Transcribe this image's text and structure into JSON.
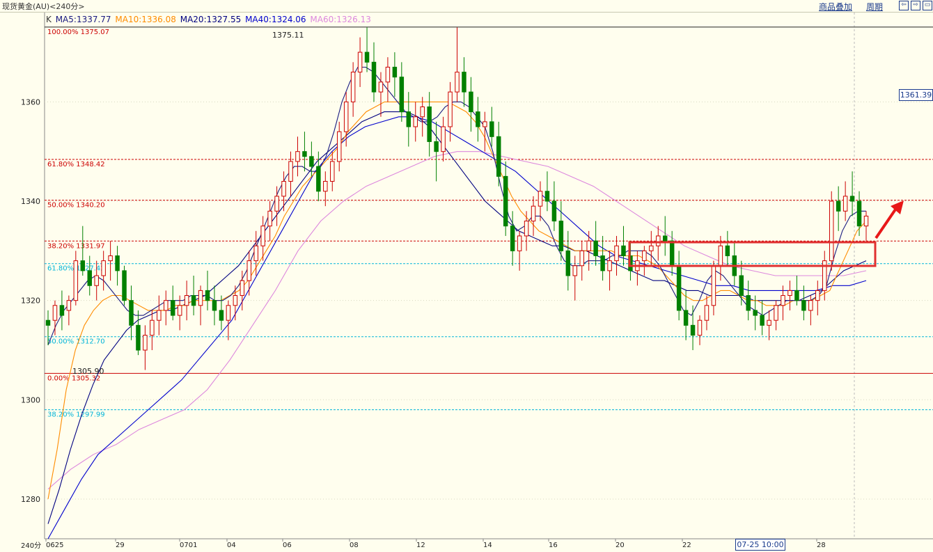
{
  "header": {
    "title": "现货黄金(AU)<240分>",
    "overlay_label": "商品叠加",
    "period_label": "周期"
  },
  "legend": {
    "k": "K",
    "ma5": "MA5:1337.77",
    "ma10": "MA10:1336.08",
    "ma20": "MA20:1327.55",
    "ma40": "MA40:1324.06",
    "ma60": "MA60:1326.13"
  },
  "colors": {
    "up": "#cc0000",
    "down": "#008000",
    "ma5": "#1a1a80",
    "ma10": "#ff8c00",
    "ma20": "#000080",
    "ma40": "#0000cc",
    "ma60": "#dd88dd",
    "fib_red": "#cc0000",
    "fib_cyan": "#00b4d8"
  },
  "price_tag": "1361.39",
  "cursor_tag": "07-25 10:00",
  "period": "240分",
  "high_label": "1375.11",
  "low_label": "1305.90",
  "chart_data": {
    "type": "candlestick",
    "ylim": [
      1272,
      1378
    ],
    "yticks": [
      1280,
      1300,
      1320,
      1340,
      1360
    ],
    "xticks": [
      "0625",
      "29",
      "0701",
      "04",
      "06",
      "08",
      "12",
      "14",
      "16",
      "20",
      "22",
      "07-25 10:00",
      "28"
    ],
    "fib_levels": [
      {
        "label": "100.00% 1375.07",
        "value": 1375.07,
        "color": "red",
        "style": "solid"
      },
      {
        "label": "61.80% 1348.42",
        "value": 1348.42,
        "color": "red",
        "style": "dashed"
      },
      {
        "label": "50.00% 1340.20",
        "value": 1340.2,
        "color": "red",
        "style": "dashed"
      },
      {
        "label": "38.20% 1331.97",
        "value": 1331.97,
        "color": "red",
        "style": "dashed"
      },
      {
        "label": "61.80% 1327.42",
        "value": 1327.42,
        "color": "cyan",
        "style": "dashed"
      },
      {
        "label": "50.00% 1312.70",
        "value": 1312.7,
        "color": "cyan",
        "style": "dashed"
      },
      {
        "label": "0.00% 1305.32",
        "value": 1305.32,
        "color": "red",
        "style": "solid"
      },
      {
        "label": "38.20% 1297.99",
        "value": 1297.99,
        "color": "cyan",
        "style": "dashed"
      }
    ],
    "candles": [
      [
        1316,
        1318,
        1311,
        1315
      ],
      [
        1316,
        1320,
        1313,
        1319
      ],
      [
        1319,
        1322,
        1314,
        1317
      ],
      [
        1318,
        1321,
        1315,
        1320
      ],
      [
        1320,
        1330,
        1319,
        1328
      ],
      [
        1328,
        1335,
        1325,
        1326
      ],
      [
        1326,
        1329,
        1321,
        1323
      ],
      [
        1323,
        1328,
        1320,
        1325
      ],
      [
        1325,
        1330,
        1322,
        1328
      ],
      [
        1328,
        1332,
        1324,
        1329
      ],
      [
        1329,
        1331,
        1323,
        1326
      ],
      [
        1326,
        1327,
        1319,
        1320
      ],
      [
        1320,
        1323,
        1312,
        1315
      ],
      [
        1315,
        1318,
        1309,
        1310
      ],
      [
        1310,
        1315,
        1306,
        1313
      ],
      [
        1313,
        1318,
        1310,
        1316
      ],
      [
        1316,
        1321,
        1313,
        1318
      ],
      [
        1318,
        1322,
        1315,
        1320
      ],
      [
        1320,
        1323,
        1316,
        1317
      ],
      [
        1317,
        1321,
        1314,
        1319
      ],
      [
        1319,
        1324,
        1316,
        1321
      ],
      [
        1321,
        1325,
        1317,
        1319
      ],
      [
        1319,
        1323,
        1315,
        1322
      ],
      [
        1322,
        1326,
        1318,
        1320
      ],
      [
        1320,
        1323,
        1315,
        1318
      ],
      [
        1318,
        1321,
        1314,
        1316
      ],
      [
        1316,
        1320,
        1312,
        1319
      ],
      [
        1319,
        1323,
        1316,
        1321
      ],
      [
        1321,
        1326,
        1318,
        1324
      ],
      [
        1324,
        1330,
        1321,
        1328
      ],
      [
        1328,
        1334,
        1325,
        1331
      ],
      [
        1331,
        1337,
        1328,
        1335
      ],
      [
        1335,
        1340,
        1332,
        1338
      ],
      [
        1338,
        1343,
        1335,
        1341
      ],
      [
        1341,
        1346,
        1338,
        1344
      ],
      [
        1344,
        1350,
        1341,
        1348
      ],
      [
        1348,
        1353,
        1345,
        1350
      ],
      [
        1350,
        1354,
        1346,
        1349
      ],
      [
        1349,
        1352,
        1345,
        1347
      ],
      [
        1347,
        1350,
        1340,
        1342
      ],
      [
        1342,
        1346,
        1339,
        1344
      ],
      [
        1344,
        1350,
        1342,
        1348
      ],
      [
        1348,
        1356,
        1346,
        1354
      ],
      [
        1354,
        1362,
        1351,
        1360
      ],
      [
        1360,
        1368,
        1357,
        1366
      ],
      [
        1366,
        1373,
        1363,
        1370
      ],
      [
        1370,
        1375,
        1366,
        1368
      ],
      [
        1368,
        1372,
        1360,
        1362
      ],
      [
        1362,
        1366,
        1357,
        1364
      ],
      [
        1364,
        1369,
        1360,
        1367
      ],
      [
        1367,
        1370,
        1361,
        1365
      ],
      [
        1365,
        1368,
        1356,
        1358
      ],
      [
        1358,
        1362,
        1351,
        1355
      ],
      [
        1355,
        1360,
        1352,
        1357
      ],
      [
        1357,
        1361,
        1353,
        1359
      ],
      [
        1359,
        1362,
        1349,
        1352
      ],
      [
        1352,
        1356,
        1344,
        1350
      ],
      [
        1350,
        1357,
        1348,
        1355
      ],
      [
        1355,
        1364,
        1352,
        1362
      ],
      [
        1362,
        1375,
        1360,
        1366
      ],
      [
        1366,
        1369,
        1359,
        1362
      ],
      [
        1362,
        1365,
        1354,
        1358
      ],
      [
        1358,
        1361,
        1352,
        1355
      ],
      [
        1355,
        1358,
        1350,
        1356
      ],
      [
        1356,
        1359,
        1351,
        1353
      ],
      [
        1353,
        1356,
        1343,
        1345
      ],
      [
        1345,
        1348,
        1333,
        1335
      ],
      [
        1335,
        1338,
        1327,
        1330
      ],
      [
        1330,
        1334,
        1326,
        1333
      ],
      [
        1333,
        1338,
        1330,
        1336
      ],
      [
        1336,
        1341,
        1333,
        1339
      ],
      [
        1339,
        1344,
        1336,
        1342
      ],
      [
        1342,
        1346,
        1338,
        1340
      ],
      [
        1340,
        1344,
        1334,
        1336
      ],
      [
        1336,
        1340,
        1328,
        1330
      ],
      [
        1330,
        1334,
        1322,
        1325
      ],
      [
        1325,
        1329,
        1320,
        1327
      ],
      [
        1327,
        1332,
        1324,
        1330
      ],
      [
        1330,
        1334,
        1326,
        1332
      ],
      [
        1332,
        1336,
        1327,
        1329
      ],
      [
        1329,
        1333,
        1324,
        1326
      ],
      [
        1326,
        1330,
        1322,
        1328
      ],
      [
        1328,
        1333,
        1325,
        1331
      ],
      [
        1331,
        1335,
        1327,
        1329
      ],
      [
        1329,
        1332,
        1324,
        1326
      ],
      [
        1326,
        1330,
        1323,
        1328
      ],
      [
        1328,
        1331,
        1325,
        1330
      ],
      [
        1330,
        1334,
        1327,
        1331
      ],
      [
        1331,
        1335,
        1328,
        1333
      ],
      [
        1333,
        1337,
        1329,
        1332
      ],
      [
        1332,
        1334,
        1325,
        1327
      ],
      [
        1327,
        1330,
        1316,
        1318
      ],
      [
        1318,
        1322,
        1312,
        1315
      ],
      [
        1315,
        1319,
        1310,
        1313
      ],
      [
        1313,
        1317,
        1311,
        1316
      ],
      [
        1316,
        1321,
        1314,
        1319
      ],
      [
        1319,
        1328,
        1317,
        1327
      ],
      [
        1327,
        1333,
        1324,
        1331
      ],
      [
        1331,
        1334,
        1327,
        1329
      ],
      [
        1329,
        1332,
        1323,
        1325
      ],
      [
        1325,
        1328,
        1319,
        1321
      ],
      [
        1321,
        1324,
        1316,
        1318
      ],
      [
        1318,
        1321,
        1314,
        1317
      ],
      [
        1317,
        1320,
        1313,
        1315
      ],
      [
        1315,
        1318,
        1312,
        1316
      ],
      [
        1316,
        1320,
        1314,
        1319
      ],
      [
        1319,
        1323,
        1316,
        1321
      ],
      [
        1321,
        1324,
        1318,
        1322
      ],
      [
        1322,
        1325,
        1319,
        1320
      ],
      [
        1320,
        1323,
        1316,
        1318
      ],
      [
        1318,
        1321,
        1315,
        1320
      ],
      [
        1320,
        1324,
        1317,
        1322
      ],
      [
        1322,
        1330,
        1320,
        1328
      ],
      [
        1328,
        1342,
        1326,
        1340
      ],
      [
        1340,
        1343,
        1334,
        1338
      ],
      [
        1338,
        1344,
        1336,
        1341
      ],
      [
        1341,
        1346,
        1337,
        1340
      ],
      [
        1340,
        1342,
        1333,
        1335
      ],
      [
        1335,
        1338,
        1332,
        1337
      ]
    ],
    "ma5": [
      1311,
      1315,
      1318,
      1320,
      1322,
      1324,
      1325,
      1324,
      1322,
      1320,
      1318,
      1317,
      1317,
      1318,
      1319,
      1320,
      1320,
      1320,
      1321,
      1321,
      1321,
      1320,
      1320,
      1321,
      1323,
      1326,
      1330,
      1334,
      1338,
      1342,
      1345,
      1347,
      1347,
      1346,
      1346,
      1349,
      1354,
      1360,
      1364,
      1367,
      1367,
      1366,
      1364,
      1362,
      1360,
      1358,
      1357,
      1356,
      1356,
      1357,
      1359,
      1360,
      1360,
      1359,
      1357,
      1355,
      1350,
      1343,
      1337,
      1334,
      1335,
      1337,
      1337,
      1335,
      1331,
      1328,
      1327,
      1327,
      1328,
      1328,
      1328,
      1329,
      1329,
      1330,
      1330,
      1330,
      1329,
      1327,
      1324,
      1321,
      1318,
      1317,
      1320,
      1324,
      1326,
      1325,
      1323,
      1321,
      1319,
      1318,
      1317,
      1318,
      1319,
      1320,
      1320,
      1320,
      1320,
      1321,
      1323,
      1329,
      1334,
      1337,
      1338,
      1338
    ],
    "ma10": [
      1280,
      1290,
      1302,
      1310,
      1315,
      1318,
      1320,
      1321,
      1321,
      1320,
      1319,
      1318,
      1318,
      1318,
      1319,
      1319,
      1320,
      1320,
      1320,
      1320,
      1321,
      1322,
      1324,
      1327,
      1330,
      1333,
      1337,
      1340,
      1343,
      1345,
      1347,
      1349,
      1351,
      1354,
      1356,
      1358,
      1359,
      1360,
      1360,
      1360,
      1360,
      1360,
      1360,
      1360,
      1360,
      1359,
      1358,
      1356,
      1353,
      1349,
      1345,
      1341,
      1338,
      1336,
      1334,
      1333,
      1332,
      1331,
      1330,
      1330,
      1330,
      1330,
      1330,
      1329,
      1329,
      1329,
      1328,
      1327,
      1325,
      1323,
      1321,
      1320,
      1320,
      1321,
      1322,
      1322,
      1321,
      1320,
      1320,
      1319,
      1319,
      1319,
      1320,
      1320,
      1320,
      1321,
      1322,
      1326,
      1330,
      1334,
      1336
    ],
    "ma20": [
      1275,
      1282,
      1290,
      1297,
      1303,
      1308,
      1311,
      1314,
      1316,
      1317,
      1318,
      1318,
      1319,
      1320,
      1321,
      1323,
      1325,
      1327,
      1330,
      1333,
      1336,
      1339,
      1342,
      1345,
      1348,
      1350,
      1352,
      1354,
      1356,
      1357,
      1358,
      1358,
      1358,
      1357,
      1355,
      1352,
      1349,
      1346,
      1343,
      1340,
      1338,
      1336,
      1334,
      1333,
      1332,
      1331,
      1331,
      1330,
      1330,
      1329,
      1328,
      1327,
      1326,
      1325,
      1324,
      1324,
      1323,
      1322,
      1322,
      1321,
      1321,
      1321,
      1321,
      1320,
      1320,
      1320,
      1320,
      1320,
      1321,
      1322,
      1324,
      1326,
      1327,
      1328
    ],
    "ma40": [
      1272,
      1278,
      1284,
      1289,
      1292,
      1295,
      1298,
      1301,
      1304,
      1308,
      1312,
      1316,
      1322,
      1328,
      1334,
      1340,
      1346,
      1350,
      1353,
      1355,
      1356,
      1357,
      1357,
      1356,
      1354,
      1352,
      1350,
      1348,
      1346,
      1343,
      1340,
      1337,
      1334,
      1331,
      1329,
      1328,
      1327,
      1326,
      1325,
      1324,
      1323,
      1323,
      1322,
      1322,
      1322,
      1322,
      1322,
      1323,
      1323,
      1324
    ],
    "ma60": [
      1282,
      1286,
      1289,
      1291,
      1294,
      1296,
      1298,
      1302,
      1308,
      1315,
      1322,
      1330,
      1336,
      1340,
      1343,
      1345,
      1347,
      1349,
      1350,
      1350,
      1349,
      1348,
      1347,
      1345,
      1343,
      1340,
      1337,
      1334,
      1331,
      1329,
      1327,
      1326,
      1325,
      1325,
      1325,
      1325,
      1326
    ]
  }
}
